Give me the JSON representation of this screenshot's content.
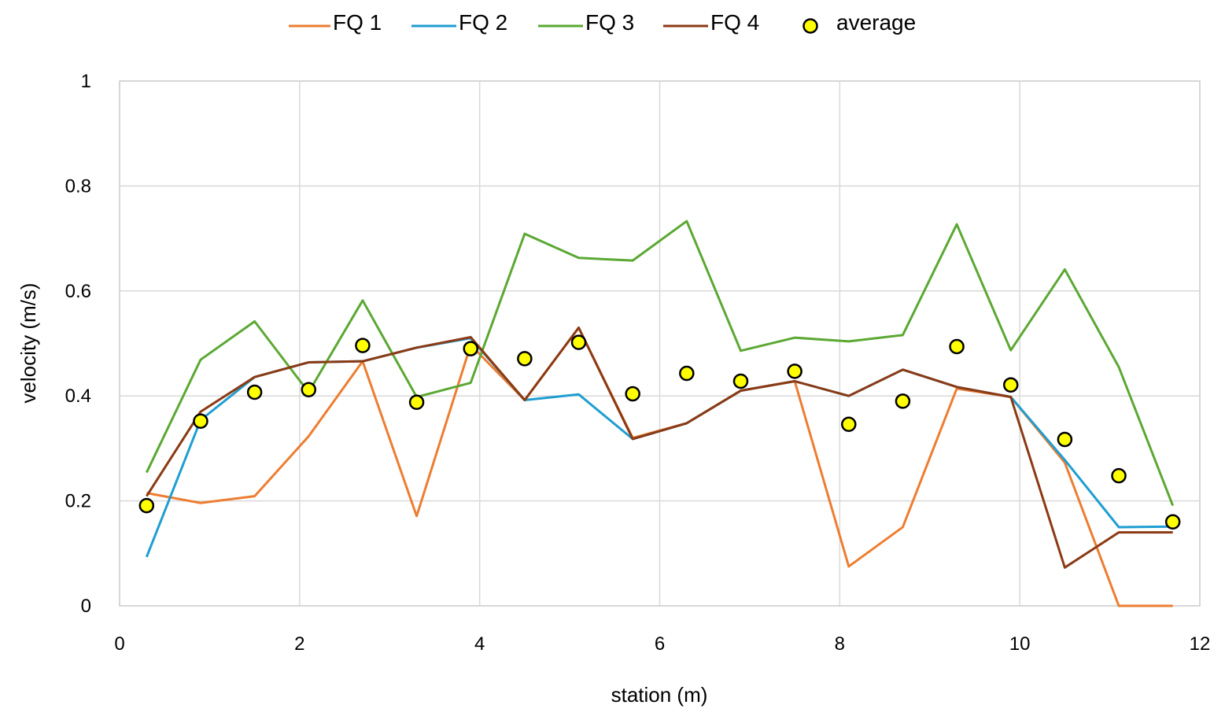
{
  "chart_data": {
    "type": "line",
    "xlabel": "station (m)",
    "ylabel": "velocity (m/s)",
    "xlim": [
      0,
      12
    ],
    "ylim": [
      0,
      1
    ],
    "xticks": [
      "0",
      "2",
      "4",
      "6",
      "8",
      "10",
      "12"
    ],
    "yticks": [
      "0",
      "0.2",
      "0.4",
      "0.6",
      "0.8",
      "1"
    ],
    "grid": true,
    "legend_position": "top",
    "x": [
      0.3,
      0.9,
      1.5,
      2.1,
      2.7,
      3.3,
      3.9,
      4.5,
      5.1,
      5.7,
      6.3,
      6.9,
      7.5,
      8.1,
      8.7,
      9.3,
      9.9,
      10.5,
      11.1,
      11.7
    ],
    "series": [
      {
        "name": "FQ 1",
        "color": "#ED7D31",
        "kind": "line",
        "values": [
          0.215,
          0.196,
          0.209,
          0.323,
          0.466,
          0.171,
          0.497,
          0.392,
          0.53,
          0.32,
          0.348,
          0.41,
          0.428,
          0.075,
          0.15,
          0.414,
          0.398,
          0.273,
          0.0,
          0.0
        ]
      },
      {
        "name": "FQ 2",
        "color": "#1F9ED1",
        "kind": "line",
        "values": [
          0.093,
          0.354,
          0.436,
          0.464,
          0.466,
          0.492,
          0.51,
          0.392,
          0.403,
          0.318,
          0.348,
          0.41,
          0.428,
          0.4,
          0.45,
          0.417,
          0.398,
          0.278,
          0.15,
          0.151
        ]
      },
      {
        "name": "FQ 3",
        "color": "#5BA833",
        "kind": "line",
        "values": [
          0.254,
          0.469,
          0.542,
          0.407,
          0.582,
          0.398,
          0.425,
          0.709,
          0.663,
          0.658,
          0.733,
          0.486,
          0.511,
          0.504,
          0.516,
          0.727,
          0.487,
          0.641,
          0.455,
          0.191
        ]
      },
      {
        "name": "FQ 4",
        "color": "#8B3A14",
        "kind": "line",
        "values": [
          0.209,
          0.37,
          0.436,
          0.464,
          0.466,
          0.492,
          0.512,
          0.392,
          0.53,
          0.318,
          0.348,
          0.41,
          0.428,
          0.4,
          0.45,
          0.417,
          0.398,
          0.073,
          0.14,
          0.14
        ]
      },
      {
        "name": "average",
        "color": "#FFFF00",
        "kind": "marker",
        "values": [
          0.191,
          0.352,
          0.407,
          0.412,
          0.496,
          0.388,
          0.49,
          0.471,
          0.502,
          0.404,
          0.443,
          0.428,
          0.447,
          0.346,
          0.39,
          0.494,
          0.421,
          0.317,
          0.248,
          0.16
        ]
      }
    ]
  }
}
